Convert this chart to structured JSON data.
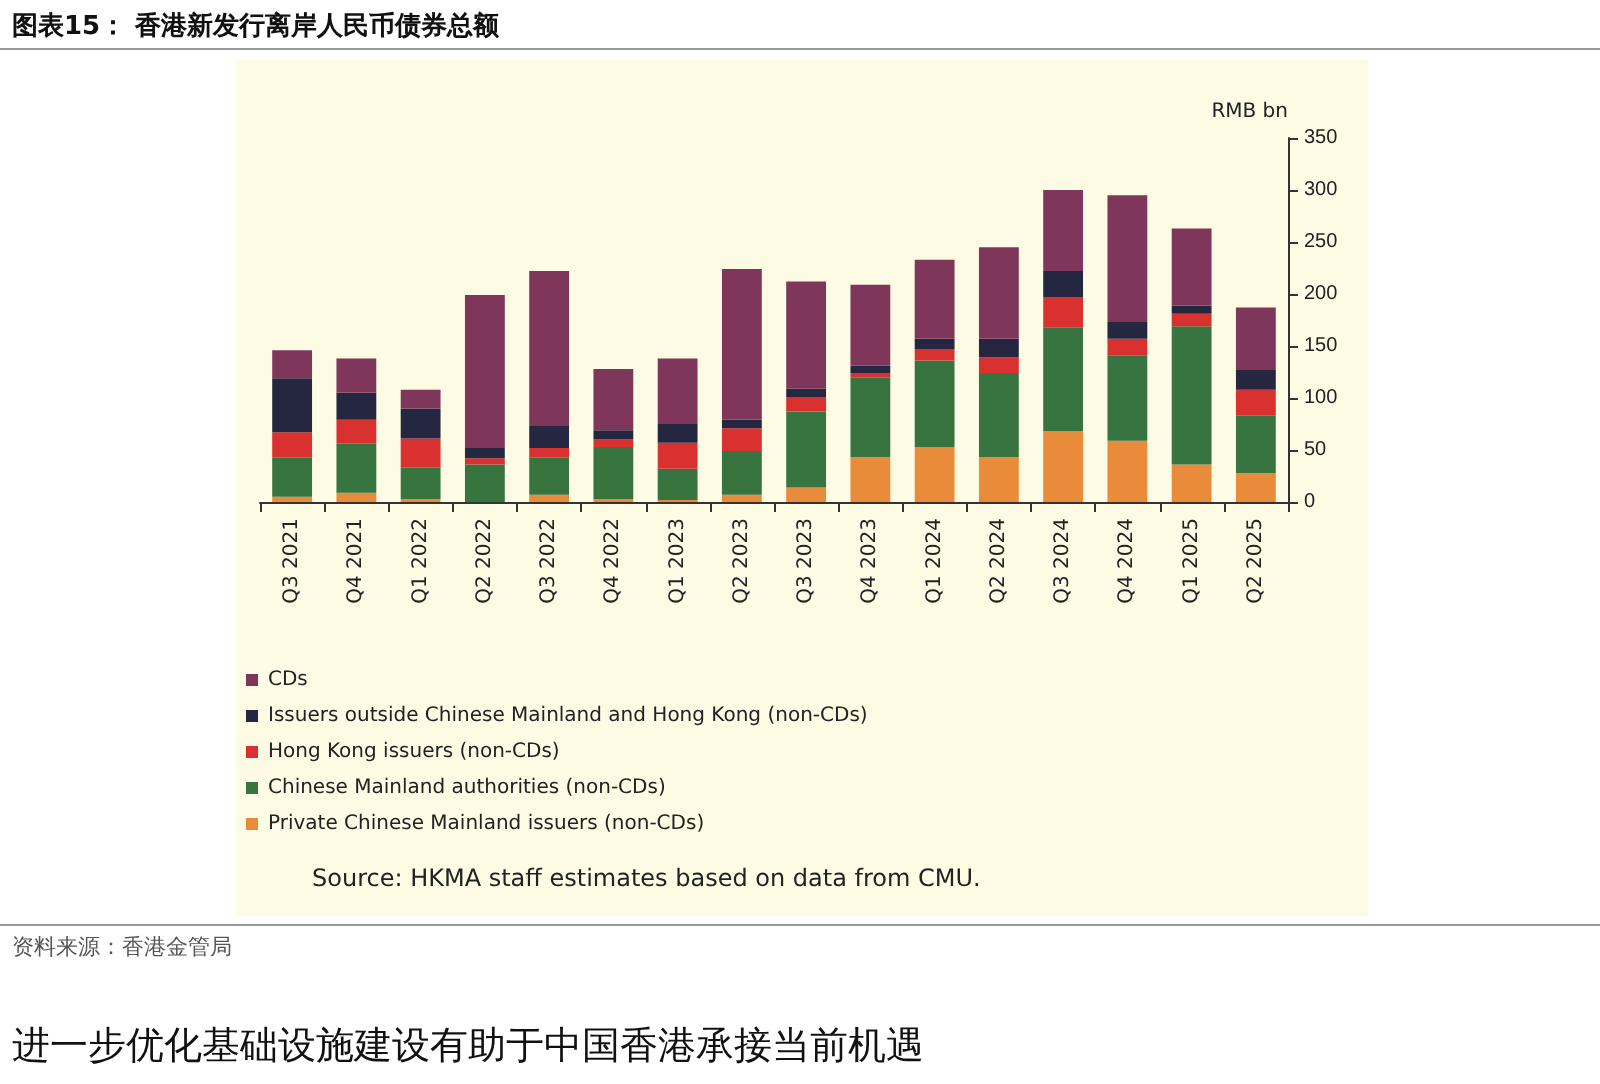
{
  "chart_data": {
    "type": "bar",
    "title": "图表15： 香港新发行离岸人民币债券总额",
    "ylabel": "RMB bn",
    "stacked": true,
    "legend": "bottom left",
    "grid": false,
    "categories": [
      "Q3 2021",
      "Q4 2021",
      "Q1 2022",
      "Q2 2022",
      "Q3 2022",
      "Q4 2022",
      "Q1 2023",
      "Q2 2023",
      "Q3 2023",
      "Q4 2023",
      "Q1 2024",
      "Q2 2024",
      "Q3 2024",
      "Q4 2024",
      "Q1 2025",
      "Q2 2025"
    ],
    "ylim": [
      0,
      350
    ],
    "yticks": [
      0,
      50,
      100,
      150,
      200,
      250,
      300,
      350
    ],
    "series": [
      {
        "name": "Private Chinese Mainland issuers (non-CDs)",
        "color": "#e88c3c",
        "values": [
          5,
          9,
          3,
          0,
          7,
          3,
          2,
          7,
          14,
          43,
          53,
          43,
          68,
          59,
          36,
          28
        ]
      },
      {
        "name": "Chinese Mainland authorities (non-CDs)",
        "color": "#37743f",
        "values": [
          38,
          47,
          30,
          36,
          36,
          50,
          30,
          42,
          73,
          77,
          83,
          81,
          100,
          82,
          133,
          55
        ]
      },
      {
        "name": "Hong Kong issuers (non-CDs)",
        "color": "#d93030",
        "values": [
          24,
          23,
          28,
          6,
          9,
          7,
          25,
          22,
          14,
          4,
          11,
          15,
          29,
          16,
          12,
          25
        ]
      },
      {
        "name": "Issuers outside Chinese Mainland and Hong Kong (non-CDs)",
        "color": "#252640",
        "values": [
          52,
          26,
          29,
          10,
          21,
          9,
          18,
          8,
          8,
          7,
          10,
          18,
          25,
          16,
          8,
          19
        ]
      },
      {
        "name": "CDs",
        "color": "#7e375b",
        "values": [
          27,
          33,
          18,
          147,
          149,
          59,
          63,
          145,
          103,
          78,
          76,
          88,
          78,
          122,
          74,
          60
        ]
      }
    ],
    "annotations": [
      "Source:  HKMA staff estimates based on data from CMU.",
      "资料来源：香港金管局",
      "进一步优化基础设施建设有助于中国香港承接当前机遇"
    ]
  }
}
